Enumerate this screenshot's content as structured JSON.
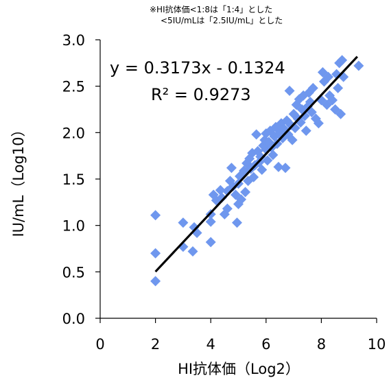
{
  "notes": [
    "※HI抗体価<1:8は「1:4」とした",
    "<5IU/mLは「2.5IU/mL」とした"
  ],
  "chart_data": {
    "type": "scatter",
    "title": "",
    "xlabel": "HI抗体価（Log2）",
    "ylabel": "IU/mL（Log10）",
    "xlim": [
      0,
      10
    ],
    "ylim": [
      0,
      3
    ],
    "xticks": [
      "0",
      "2",
      "4",
      "6",
      "8",
      "10"
    ],
    "yticks": [
      "0.0",
      "0.5",
      "1.0",
      "1.5",
      "2.0",
      "2.5",
      "3.0"
    ],
    "grid": false,
    "marker_color": "#6f97ee",
    "trendline_color": "#000000",
    "equation": "y = 0.3173x - 0.1324",
    "r_squared": "R² = 0.9273",
    "trendline": {
      "slope": 0.3173,
      "intercept": -0.1324,
      "x_range": [
        2,
        9.3
      ]
    },
    "points": [
      [
        2,
        1.11
      ],
      [
        2,
        0.7
      ],
      [
        2,
        0.4
      ],
      [
        3,
        1.03
      ],
      [
        3,
        0.77
      ],
      [
        3.35,
        0.72
      ],
      [
        3.4,
        0.98
      ],
      [
        3.5,
        0.92
      ],
      [
        4,
        1.04
      ],
      [
        4,
        0.82
      ],
      [
        4,
        1.12
      ],
      [
        4.1,
        1.33
      ],
      [
        4.2,
        1.27
      ],
      [
        4.35,
        1.38
      ],
      [
        4.4,
        1.3
      ],
      [
        4.5,
        1.12
      ],
      [
        4.6,
        1.18
      ],
      [
        4.6,
        1.37
      ],
      [
        4.7,
        1.48
      ],
      [
        4.75,
        1.62
      ],
      [
        4.8,
        1.42
      ],
      [
        4.9,
        1.33
      ],
      [
        4.95,
        1.03
      ],
      [
        5.0,
        1.23
      ],
      [
        5.0,
        1.45
      ],
      [
        5.05,
        1.53
      ],
      [
        5.1,
        1.28
      ],
      [
        5.2,
        1.59
      ],
      [
        5.25,
        1.36
      ],
      [
        5.3,
        1.67
      ],
      [
        5.35,
        1.48
      ],
      [
        5.4,
        1.72
      ],
      [
        5.45,
        1.61
      ],
      [
        5.5,
        1.78
      ],
      [
        5.55,
        1.52
      ],
      [
        5.6,
        1.65
      ],
      [
        5.65,
        1.98
      ],
      [
        5.7,
        1.8
      ],
      [
        5.75,
        1.68
      ],
      [
        5.8,
        1.74
      ],
      [
        5.85,
        1.6
      ],
      [
        5.9,
        1.86
      ],
      [
        5.95,
        1.92
      ],
      [
        6.0,
        1.82
      ],
      [
        6.0,
        1.99
      ],
      [
        6.05,
        1.7
      ],
      [
        6.1,
        1.9
      ],
      [
        6.15,
        2.02
      ],
      [
        6.2,
        1.84
      ],
      [
        6.25,
        1.76
      ],
      [
        6.3,
        1.96
      ],
      [
        6.35,
        2.06
      ],
      [
        6.4,
        1.88
      ],
      [
        6.45,
        1.63
      ],
      [
        6.5,
        2.0
      ],
      [
        6.55,
        2.1
      ],
      [
        6.6,
        1.94
      ],
      [
        6.65,
        2.04
      ],
      [
        6.7,
        1.62
      ],
      [
        6.75,
        2.13
      ],
      [
        6.8,
        1.98
      ],
      [
        6.85,
        2.45
      ],
      [
        6.9,
        2.08
      ],
      [
        6.95,
        1.92
      ],
      [
        7.0,
        2.2
      ],
      [
        7.05,
        2.05
      ],
      [
        7.1,
        2.3
      ],
      [
        7.15,
        2.15
      ],
      [
        7.2,
        2.36
      ],
      [
        7.25,
        2.11
      ],
      [
        7.3,
        2.25
      ],
      [
        7.35,
        2.4
      ],
      [
        7.4,
        2.18
      ],
      [
        7.45,
        2.02
      ],
      [
        7.5,
        2.28
      ],
      [
        7.55,
        2.43
      ],
      [
        7.6,
        2.33
      ],
      [
        7.65,
        2.22
      ],
      [
        7.7,
        2.48
      ],
      [
        7.8,
        2.15
      ],
      [
        7.9,
        2.1
      ],
      [
        8.0,
        2.35
      ],
      [
        8.05,
        2.65
      ],
      [
        8.1,
        2.55
      ],
      [
        8.2,
        2.3
      ],
      [
        8.25,
        2.6
      ],
      [
        8.3,
        2.4
      ],
      [
        8.4,
        2.35
      ],
      [
        8.5,
        2.25
      ],
      [
        8.55,
        2.63
      ],
      [
        8.6,
        2.48
      ],
      [
        8.65,
        2.75
      ],
      [
        8.7,
        2.2
      ],
      [
        8.75,
        2.78
      ],
      [
        8.8,
        2.6
      ],
      [
        9.35,
        2.72
      ]
    ]
  }
}
